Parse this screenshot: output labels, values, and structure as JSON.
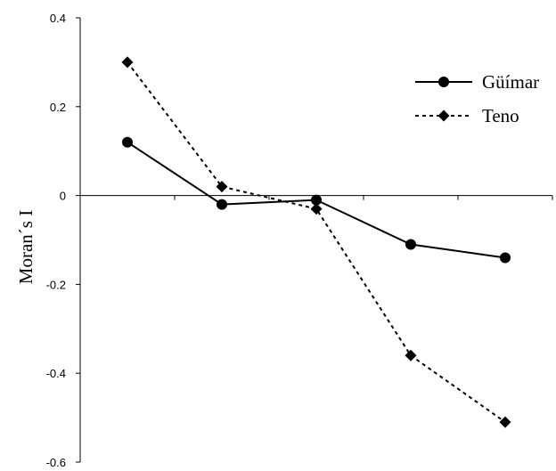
{
  "chart_data": {
    "type": "line",
    "title": "",
    "xlabel": "",
    "ylabel": "Moran´s I",
    "x": [
      1,
      2,
      3,
      4,
      5
    ],
    "xlim": [
      0.5,
      5.5
    ],
    "ylim": [
      -0.6,
      0.4
    ],
    "yticks": [
      0.4,
      0.2,
      0,
      -0.2,
      -0.4,
      -0.6
    ],
    "ytick_labels": [
      "0.4",
      "0.2",
      "0",
      "-0.2",
      "-0.4",
      "-0.6"
    ],
    "grid": false,
    "legend_position": "top-right",
    "series": [
      {
        "name": "Güímar",
        "values": [
          0.12,
          -0.02,
          -0.01,
          -0.11,
          -0.14
        ],
        "line": "solid",
        "marker": "circle",
        "color": "#000000"
      },
      {
        "name": "Teno",
        "values": [
          0.3,
          0.02,
          -0.03,
          -0.36,
          -0.51
        ],
        "line": "dotted",
        "marker": "diamond",
        "color": "#000000"
      }
    ]
  }
}
